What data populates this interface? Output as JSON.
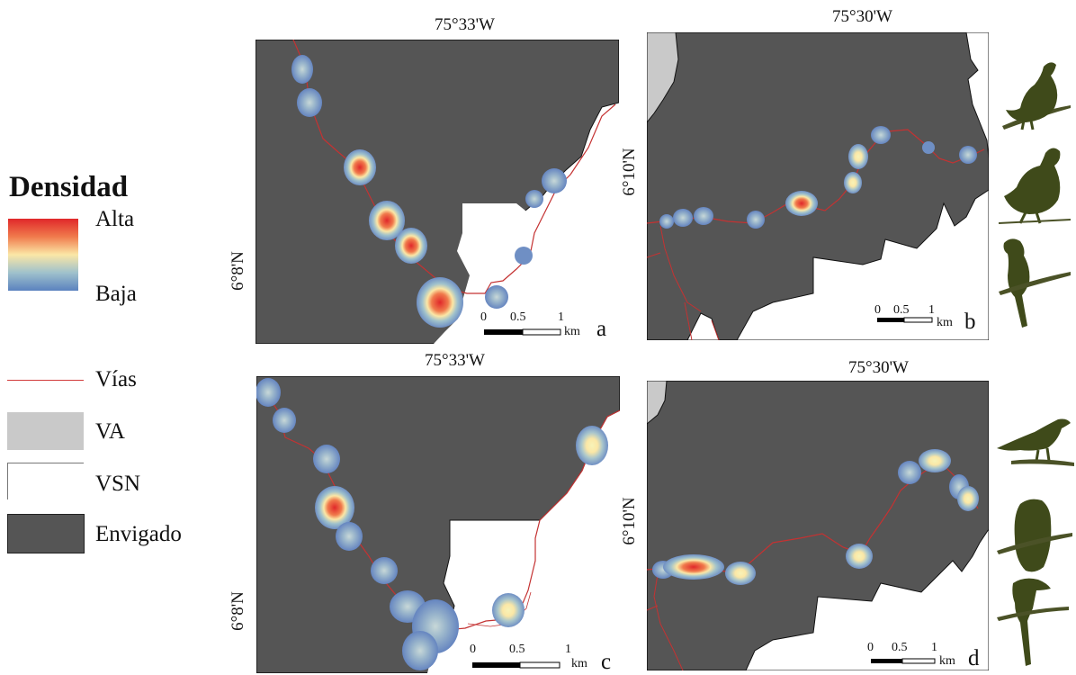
{
  "legend": {
    "title": "Densidad",
    "high": "Alta",
    "low": "Baja",
    "roads": "Vías",
    "va": "VA",
    "vsn": "VSN",
    "envigado": "Envigado"
  },
  "colors": {
    "envigado": "#555555",
    "va": "#c9c9c9",
    "vsn": "#ffffff",
    "roads": "#c43232",
    "density_high": "#e0282a",
    "density_low": "#5a82bf"
  },
  "panels": [
    {
      "letter": "a",
      "top_coord": "75°33'W",
      "side_coord": "6°8'N",
      "scale": {
        "n0": "0",
        "n1": "0.5",
        "n2": "1",
        "unit": "km"
      }
    },
    {
      "letter": "b",
      "top_coord": "75°30'W",
      "side_coord": "6°10'N",
      "scale": {
        "n0": "0",
        "n1": "0.5",
        "n2": "1",
        "unit": "km"
      }
    },
    {
      "letter": "c",
      "top_coord": "75°33'W",
      "side_coord": "6°8'N",
      "scale": {
        "n0": "0",
        "n1": "0.5",
        "n2": "1",
        "unit": "km"
      }
    },
    {
      "letter": "d",
      "top_coord": "75°30'W",
      "side_coord": "6°10'N",
      "scale": {
        "n0": "0",
        "n1": "0.5",
        "n2": "1",
        "unit": "km"
      }
    }
  ],
  "birds": [
    "guan-silhouette-icon",
    "quail-silhouette-icon",
    "cuckoo-silhouette-icon",
    "tanager-silhouette-icon",
    "owl-silhouette-icon",
    "squirrel-cuckoo-silhouette-icon"
  ]
}
